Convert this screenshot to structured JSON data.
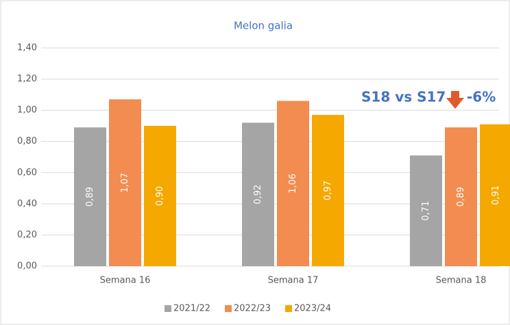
{
  "chart_data": {
    "type": "bar",
    "title": "Melon galia",
    "categories": [
      "Semana 16",
      "Semana 17",
      "Semana 18"
    ],
    "series": [
      {
        "name": "2021/22",
        "color": "#a5a5a5",
        "values": [
          0.89,
          0.92,
          0.71
        ],
        "value_labels": [
          "0,89",
          "0,92",
          "0,71"
        ]
      },
      {
        "name": "2022/23",
        "color": "#f28c50",
        "values": [
          1.07,
          1.06,
          0.89
        ],
        "value_labels": [
          "1,07",
          "1,06",
          "0,89"
        ]
      },
      {
        "name": "2023/24",
        "color": "#f5a800",
        "values": [
          0.9,
          0.97,
          0.91
        ],
        "value_labels": [
          "0,90",
          "0,97",
          "0,91"
        ]
      }
    ],
    "ylim": [
      0,
      1.4
    ],
    "yticks": [
      {
        "value": 0,
        "label": "0,00"
      },
      {
        "value": 0.2,
        "label": "0,20"
      },
      {
        "value": 0.4,
        "label": "0,40"
      },
      {
        "value": 0.6,
        "label": "0,60"
      },
      {
        "value": 0.8,
        "label": "0,80"
      },
      {
        "value": 1.0,
        "label": "1,00"
      },
      {
        "value": 1.2,
        "label": "1,20"
      },
      {
        "value": 1.4,
        "label": "1,40"
      }
    ],
    "grid": true,
    "legend": "bottom",
    "annotations": [
      "S18 vs S17",
      "-6%"
    ]
  }
}
